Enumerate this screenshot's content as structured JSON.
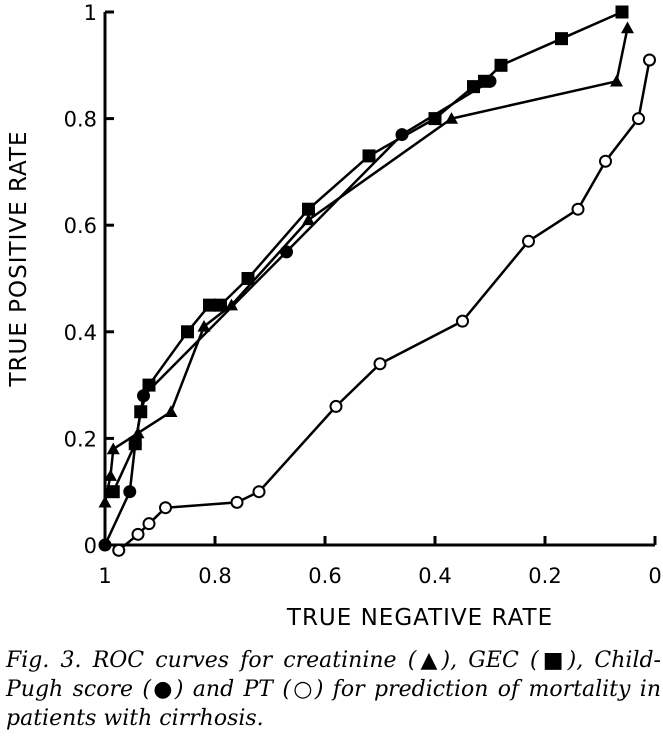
{
  "chart_data": {
    "type": "line",
    "title": "",
    "xlabel": "TRUE NEGATIVE RATE",
    "ylabel": "TRUE POSITIVE RATE",
    "xlim": [
      1,
      0
    ],
    "ylim": [
      0,
      1
    ],
    "x_ticks": [
      "1",
      "0.8",
      "0.6",
      "0.4",
      "0.2",
      "0"
    ],
    "y_ticks": [
      "0",
      "0.2",
      "0.4",
      "0.6",
      "0.8",
      "1"
    ],
    "grid": false,
    "legend": "none",
    "series": [
      {
        "marker": "triangle-filled",
        "x": [
          1.0,
          0.99,
          0.985,
          0.94,
          0.88,
          0.82,
          0.77,
          0.63,
          0.37,
          0.07,
          0.05
        ],
        "y": [
          0.08,
          0.13,
          0.18,
          0.21,
          0.25,
          0.41,
          0.45,
          0.61,
          0.8,
          0.87,
          0.97
        ]
      },
      {
        "marker": "square-filled",
        "x": [
          0.985,
          0.945,
          0.935,
          0.92,
          0.85,
          0.81,
          0.79,
          0.74,
          0.63,
          0.52,
          0.4,
          0.33,
          0.31,
          0.28,
          0.17,
          0.06
        ],
        "y": [
          0.1,
          0.19,
          0.25,
          0.3,
          0.4,
          0.45,
          0.45,
          0.5,
          0.63,
          0.73,
          0.8,
          0.86,
          0.87,
          0.9,
          0.95,
          1.0
        ]
      },
      {
        "marker": "circle-filled",
        "x": [
          1.0,
          0.955,
          0.945,
          0.93,
          0.67,
          0.46,
          0.3
        ],
        "y": [
          0.0,
          0.1,
          0.19,
          0.28,
          0.55,
          0.77,
          0.87
        ]
      },
      {
        "marker": "circle-open",
        "x": [
          0.975,
          0.94,
          0.92,
          0.89,
          0.76,
          0.72,
          0.58,
          0.5,
          0.35,
          0.23,
          0.14,
          0.09,
          0.03,
          0.01
        ],
        "y": [
          -0.01,
          0.02,
          0.04,
          0.07,
          0.08,
          0.1,
          0.26,
          0.34,
          0.42,
          0.57,
          0.63,
          0.72,
          0.8,
          0.91
        ]
      }
    ]
  },
  "caption": {
    "text": "Fig. 3. ROC curves for creatinine (▲), GEC (■), Child-Pugh score (●) and PT (○) for prediction of mortality in patients with cirrhosis."
  }
}
